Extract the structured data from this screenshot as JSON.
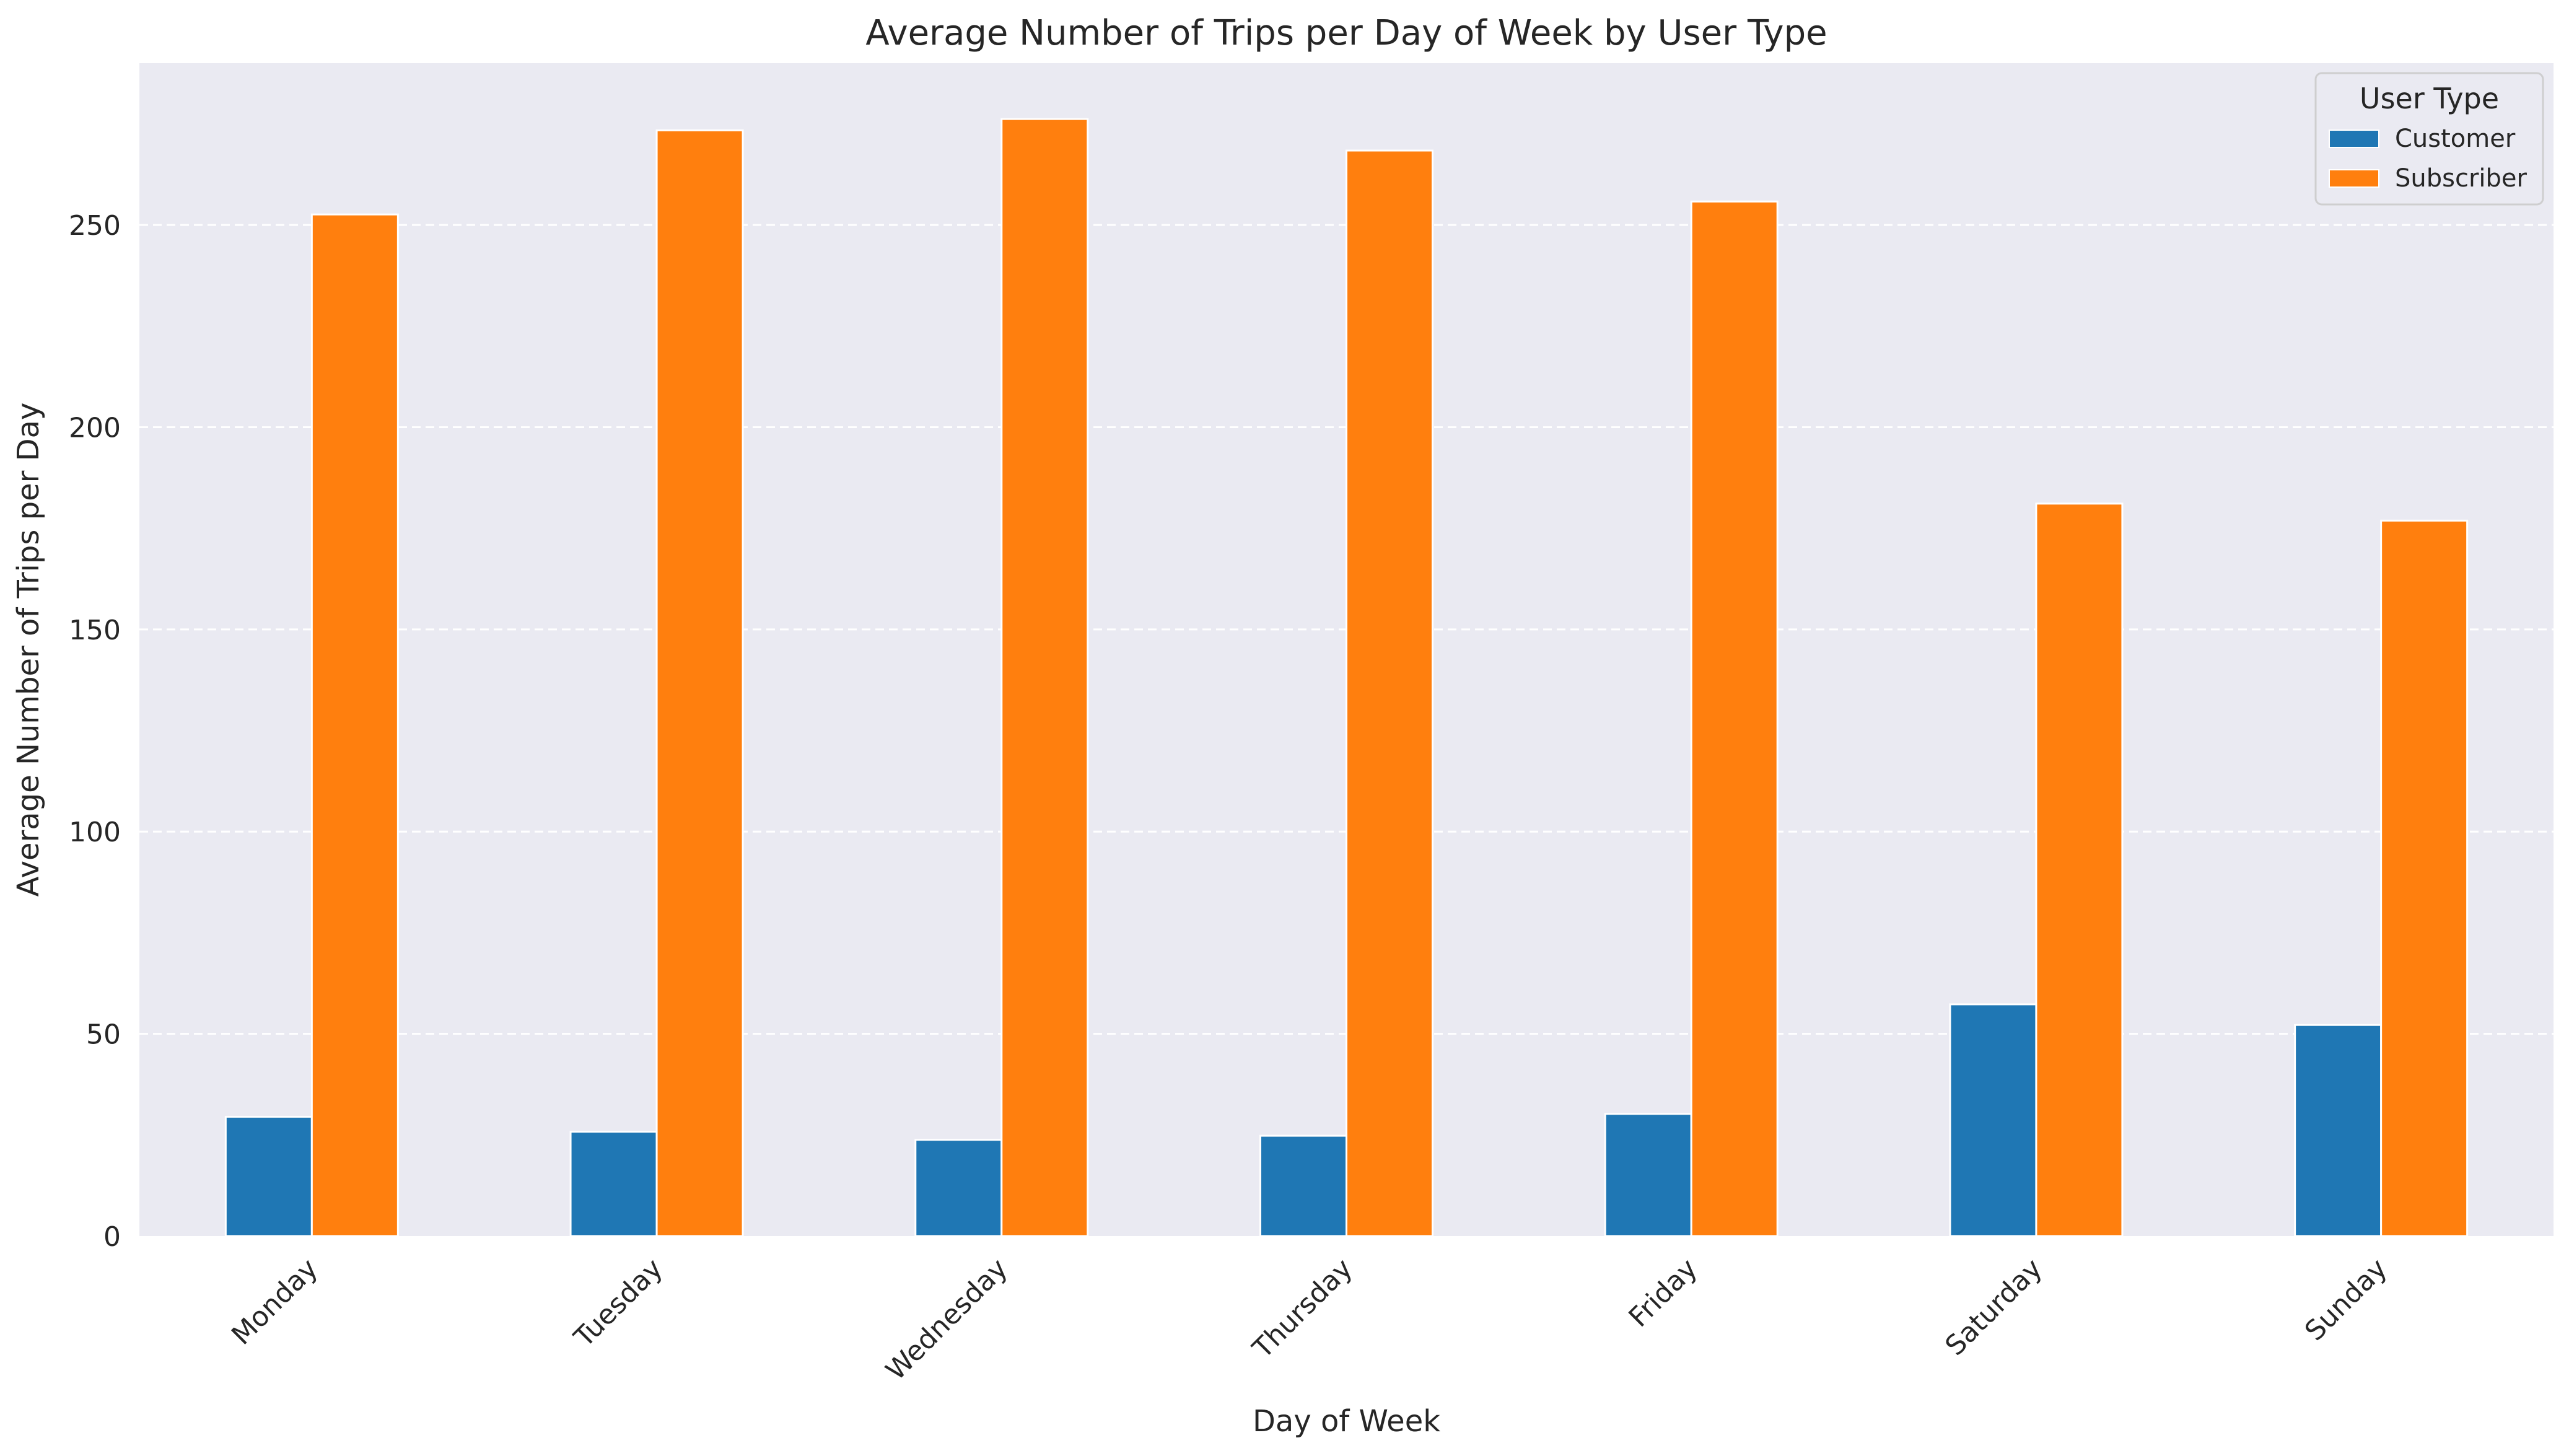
{
  "chart_data": {
    "type": "bar",
    "title": "Average Number of Trips per Day of Week by User Type",
    "xlabel": "Day of Week",
    "ylabel": "Average Number of Trips per Day",
    "categories": [
      "Monday",
      "Tuesday",
      "Wednesday",
      "Thursday",
      "Friday",
      "Saturday",
      "Sunday"
    ],
    "ylim": [
      0,
      290
    ],
    "yticks": [
      0,
      50,
      100,
      150,
      200,
      250
    ],
    "grid": "horizontal dashed",
    "legend": {
      "title": "User Type",
      "placement": "top-right"
    },
    "series": [
      {
        "name": "Customer",
        "color": "#1f77b4",
        "values": [
          29.5,
          25.8,
          23.8,
          24.8,
          30.2,
          57.3,
          52.2
        ]
      },
      {
        "name": "Subscriber",
        "color": "#ff7f0e",
        "values": [
          252.6,
          273.4,
          276.2,
          268.4,
          255.8,
          181.1,
          176.9
        ]
      }
    ],
    "colors": {
      "plot_background": "#eaeaf2",
      "grid": "#ffffff",
      "text": "#262626"
    }
  }
}
